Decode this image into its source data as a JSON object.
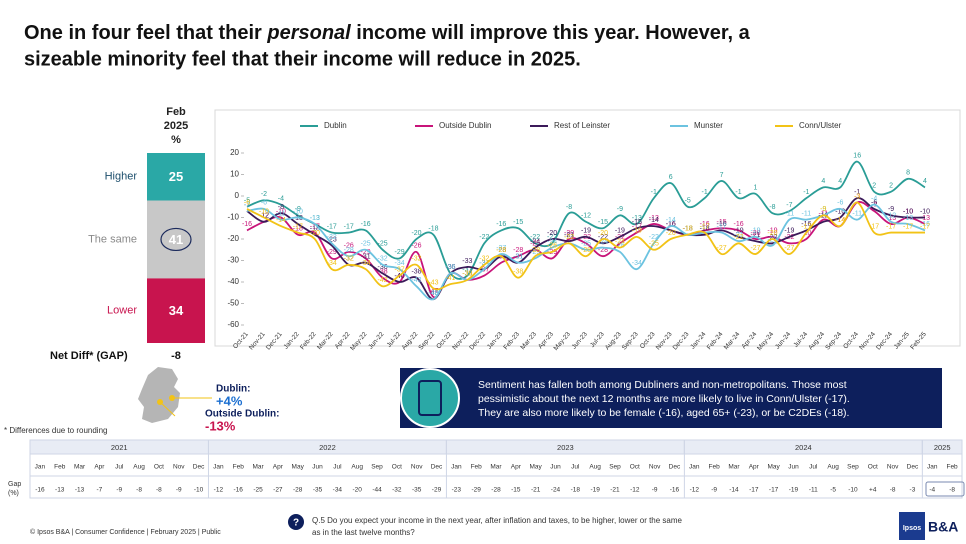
{
  "title": {
    "line1": [
      "One in four feel that their ",
      "personal",
      " income will improve this year. However, a"
    ],
    "line2": "sizeable minority feel that their income will reduce in 2025."
  },
  "chart_data": [
    {
      "type": "stacked_bar",
      "title_lines": [
        "Feb",
        "2025",
        "%"
      ],
      "categories": [
        "Higher",
        "The same",
        "Lower"
      ],
      "values": [
        25,
        41,
        34
      ],
      "colors": [
        "#2aa8a6",
        "#c8c8c8",
        "#c8144e"
      ],
      "label_colors": [
        "#1b4d6b",
        "#8a8a8a",
        "#c8144e"
      ],
      "net_label": "Net Diff* (GAP)",
      "net_value": -8,
      "footnote": "* Differences due to rounding"
    },
    {
      "type": "line",
      "categories": [
        "Oct-21",
        "Nov-21",
        "Dec-21",
        "Jan-22",
        "Feb-22",
        "Mar-22",
        "Apr-22",
        "May-22",
        "Jun-22",
        "Jul-22",
        "Aug-22",
        "Sep-22",
        "Oct-22",
        "Nov-22",
        "Dec-22",
        "Jan-23",
        "Feb-23",
        "Mar-23",
        "Apr-23",
        "May-23",
        "Jun-23",
        "Jul-23",
        "Aug-23",
        "Sep-23",
        "Oct-23",
        "Nov-23",
        "Dec-23",
        "Jan-24",
        "Feb-24",
        "Mar-24",
        "Apr-24",
        "May-24",
        "Jun-24",
        "Jul-24",
        "Aug-24",
        "Sep-24",
        "Oct-24",
        "Nov-24",
        "Dec-24",
        "Jan-25",
        "Feb-25"
      ],
      "ylim": [
        -60,
        20
      ],
      "yticks": [
        -60,
        -50,
        -40,
        -30,
        -20,
        -10,
        0,
        10,
        20
      ],
      "series": [
        {
          "name": "Dublin",
          "color": "#2a9d96",
          "values": [
            -5,
            -2,
            -4,
            -9,
            -13,
            -17,
            -17,
            -16,
            -25,
            -29,
            -20,
            -18,
            -36,
            -37,
            -22,
            -16,
            -15,
            -22,
            -22,
            -8,
            -12,
            -15,
            -9,
            -13,
            -1,
            6,
            -5,
            -1,
            7,
            -1,
            1,
            -8,
            -7,
            -1,
            4,
            4,
            16,
            2,
            2,
            8,
            4
          ]
        },
        {
          "name": "Outside Dublin",
          "color": "#c8147a",
          "values": [
            -16,
            -12,
            -10,
            -18,
            -17,
            -29,
            -26,
            -29,
            -38,
            -40,
            -26,
            -47,
            -36,
            -39,
            -37,
            -31,
            -28,
            -25,
            -29,
            -20,
            -22,
            -28,
            -22,
            -17,
            -13,
            -16,
            -18,
            -16,
            -15,
            -16,
            -20,
            -19,
            -22,
            -20,
            -11,
            -14,
            -3,
            -7,
            -13,
            -10,
            -13
          ]
        },
        {
          "name": "Rest of Leinster",
          "color": "#3c1a5a",
          "values": [
            -7,
            -12,
            -8,
            -13,
            -18,
            -23,
            -32,
            -31,
            -36,
            -40,
            -38,
            -48,
            -36,
            -33,
            -34,
            -28,
            -31,
            -24,
            -20,
            -21,
            -19,
            -22,
            -19,
            -15,
            -14,
            -16,
            -18,
            -18,
            -16,
            -19,
            -21,
            -22,
            -19,
            -16,
            -12,
            -10,
            -1,
            -6,
            -9,
            -10,
            -10
          ]
        },
        {
          "name": "Munster",
          "color": "#6cc3e0",
          "values": [
            -7,
            -6,
            -11,
            -10,
            -13,
            -22,
            -28,
            -25,
            -32,
            -34,
            -42,
            -48,
            -36,
            -39,
            -34,
            -27,
            -31,
            -29,
            -24,
            -22,
            -25,
            -24,
            -26,
            -34,
            -22,
            -14,
            -18,
            -17,
            -17,
            -21,
            -19,
            -23,
            -11,
            -11,
            -9,
            -6,
            -11,
            -4,
            -12,
            -13,
            -16
          ]
        },
        {
          "name": "Conn/Ulster",
          "color": "#f2c316",
          "values": [
            -6,
            -10,
            -14,
            -17,
            -20,
            -34,
            -32,
            -34,
            -42,
            -37,
            -32,
            -43,
            -41,
            -39,
            -32,
            -28,
            -38,
            -28,
            -26,
            -22,
            -28,
            -20,
            -24,
            -19,
            -25,
            -20,
            -18,
            -17,
            -27,
            -22,
            -27,
            -20,
            -27,
            -17,
            -9,
            -14,
            -3,
            -17,
            -17,
            -17,
            -17
          ]
        }
      ]
    }
  ],
  "map": {
    "dublin_label": "Dublin:",
    "dublin_value": "+4%",
    "outside_label": "Outside Dublin:",
    "outside_value": "-13%"
  },
  "info_box": {
    "lines": [
      "Sentiment has fallen both among Dubliners and non-metropolitans. Those most",
      "pessimistic about the next 12 months  are more likely to live in Conn/Ulster (-17).",
      "They are also more likely to be female (-16), aged 65+ (-23), or be C2DEs (-18)."
    ]
  },
  "gap_table": {
    "label_lines": [
      "Gap",
      "(%)"
    ],
    "years": [
      {
        "year": "2021",
        "months": [
          "Jan",
          "Feb",
          "Mar",
          "Apr",
          "Jul",
          "Aug",
          "Oct",
          "Nov",
          "Dec"
        ],
        "values": [
          -16,
          -13,
          -13,
          -7,
          -9,
          -8,
          -8,
          -9,
          -10
        ]
      },
      {
        "year": "2022",
        "months": [
          "Jan",
          "Feb",
          "Mar",
          "Apr",
          "May",
          "Jun",
          "Jul",
          "Aug",
          "Sep",
          "Oct",
          "Nov",
          "Dec"
        ],
        "values": [
          -12,
          -16,
          -25,
          -27,
          -28,
          -35,
          -34,
          -20,
          -44,
          -32,
          -35,
          -29
        ]
      },
      {
        "year": "2023",
        "months": [
          "Jan",
          "Feb",
          "Mar",
          "Apr",
          "May",
          "Jun",
          "Jul",
          "Aug",
          "Sep",
          "Oct",
          "Nov",
          "Dec"
        ],
        "values": [
          -23,
          -29,
          -28,
          -15,
          -21,
          -24,
          -18,
          -19,
          -21,
          -12,
          -9,
          -16
        ]
      },
      {
        "year": "2024",
        "months": [
          "Jan",
          "Feb",
          "Mar",
          "Apr",
          "May",
          "Jun",
          "Jul",
          "Aug",
          "Sep",
          "Oct",
          "Nov",
          "Dec"
        ],
        "values": [
          -12,
          -9,
          -14,
          -17,
          -17,
          -19,
          -11,
          -5,
          -10,
          4,
          -8,
          -3
        ],
        "value_labels": [
          "-12",
          "-9",
          "-14",
          "-17",
          "-17",
          "-19",
          "-11",
          "-5",
          "-10",
          "+4",
          "-8",
          "-3"
        ]
      },
      {
        "year": "2025",
        "months": [
          "Jan",
          "Feb"
        ],
        "values": [
          -4,
          -8
        ]
      }
    ]
  },
  "footer": {
    "copyright": "© Ipsos B&A | Consumer Confidence | February 2025 | Public",
    "question_lines": [
      "Q.5 Do you expect your income in the next year, after inflation and taxes, to be higher, lower or the same",
      "as in the last twelve months?"
    ],
    "logo1": "Ipsos",
    "logo2": "B&A"
  }
}
